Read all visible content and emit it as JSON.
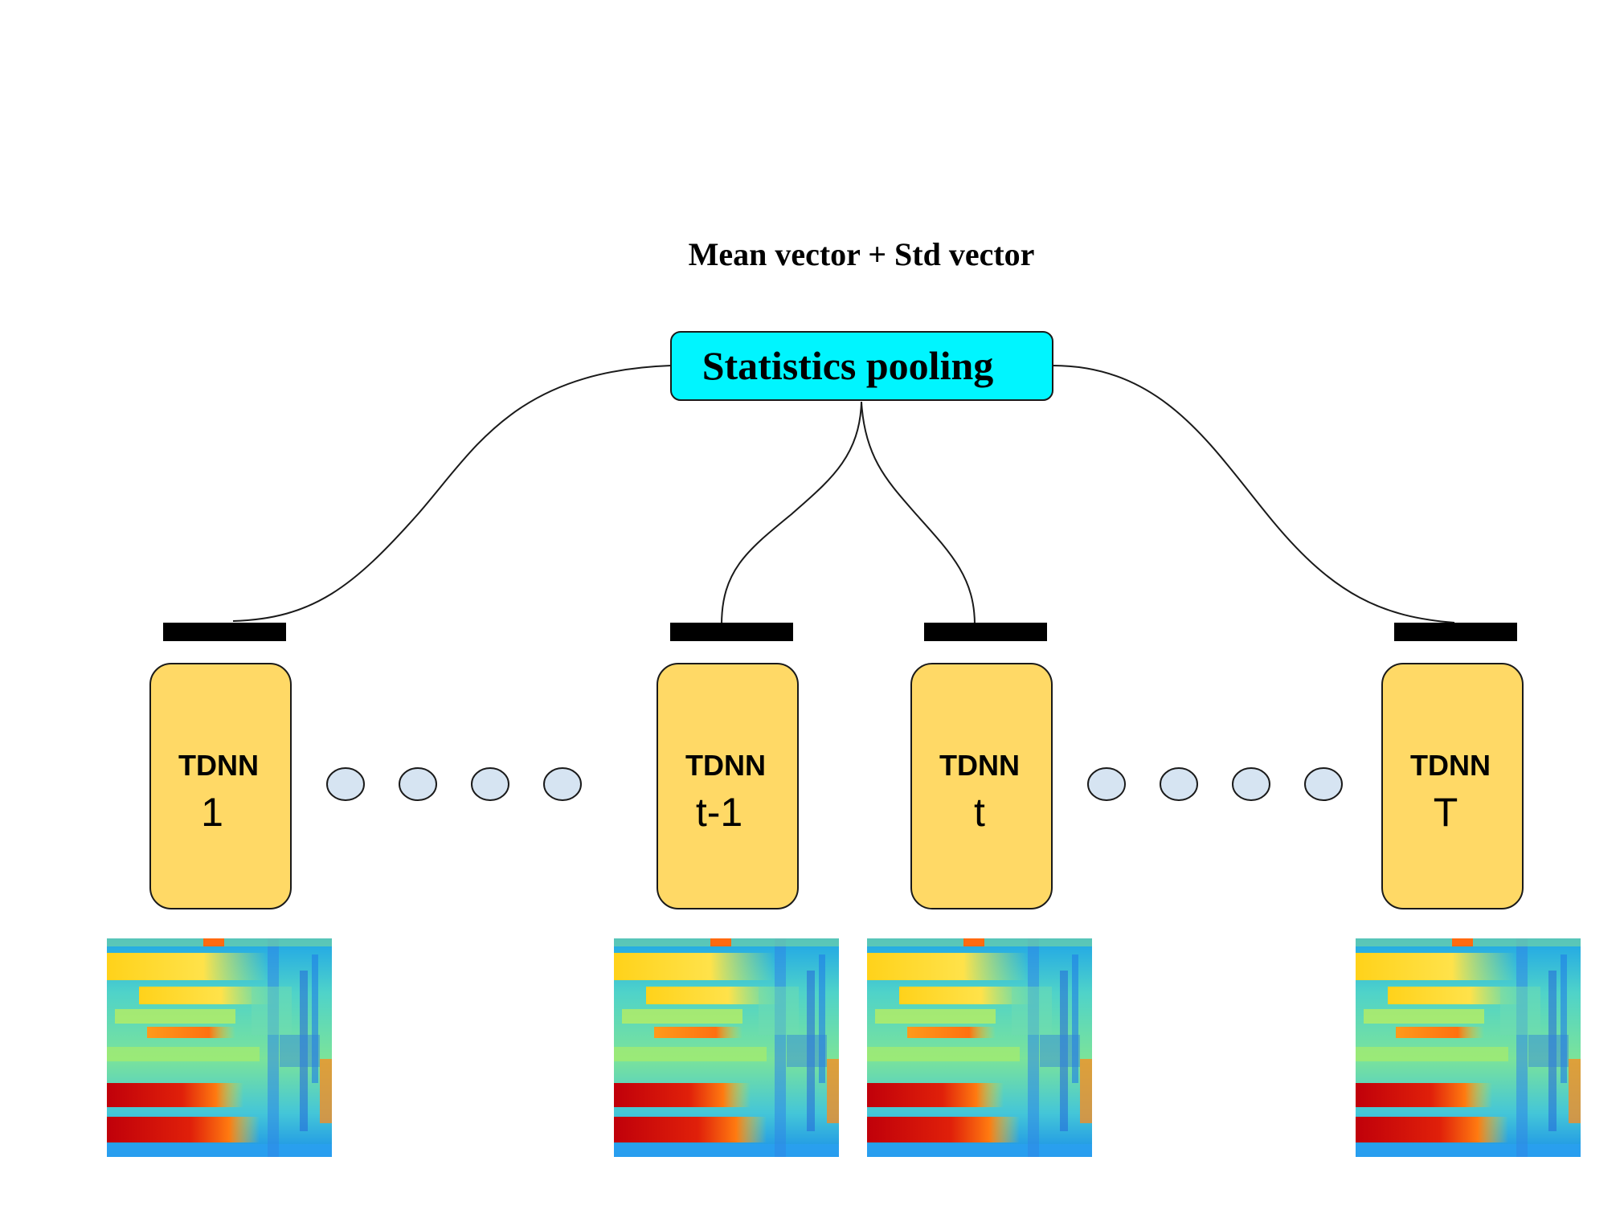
{
  "diagram": {
    "top_label": "Mean vector + Std vector",
    "pooling_box": {
      "label": "Statistics pooling",
      "fill": "#00f5ff",
      "stroke": "#1a1a1a"
    },
    "tdnn_fill": "#ffd966",
    "dot_fill": "#d6e4f2",
    "tdnn_blocks": [
      {
        "title": "TDNN",
        "index": "1"
      },
      {
        "title": "TDNN",
        "index": "t-1"
      },
      {
        "title": "TDNN",
        "index": "t"
      },
      {
        "title": "TDNN",
        "index": "T"
      }
    ],
    "spectrogram_icon": "spectrogram-image"
  }
}
